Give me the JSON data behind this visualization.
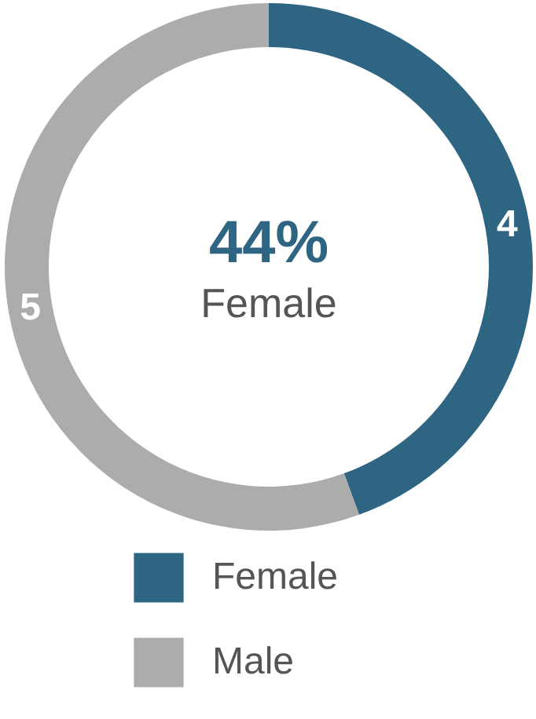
{
  "chart_data": {
    "type": "donut",
    "categories": [
      "Female",
      "Male"
    ],
    "values": [
      4,
      5
    ],
    "colors": [
      "#2e6583",
      "#acacac"
    ],
    "data_labels": true,
    "legend": "bottom",
    "annotations": [
      "44%",
      "Female"
    ]
  }
}
